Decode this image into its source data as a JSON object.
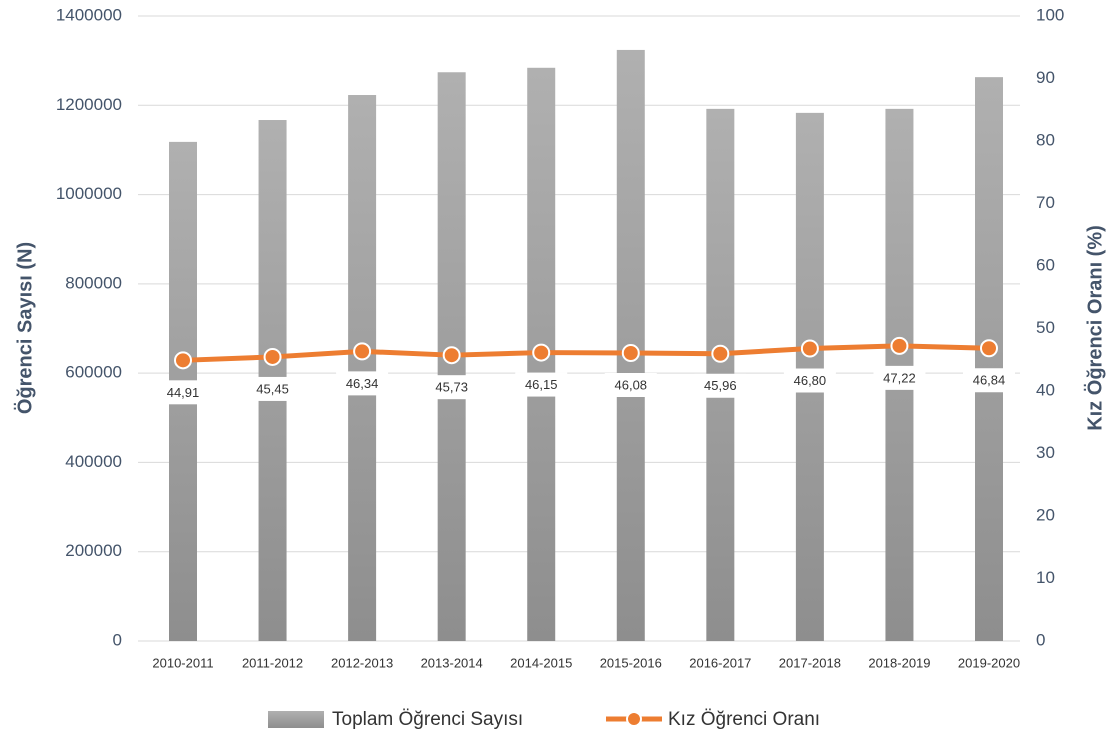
{
  "chart_data": {
    "type": "bar",
    "categories": [
      "2010-2011",
      "2011-2012",
      "2012-2013",
      "2013-2014",
      "2014-2015",
      "2015-2016",
      "2016-2017",
      "2017-2018",
      "2018-2019",
      "2019-2020"
    ],
    "series": [
      {
        "name": "Toplam Öğrenci Sayısı",
        "type": "bar",
        "color": "#a0a0a0",
        "values": [
          1118000,
          1167000,
          1223000,
          1274000,
          1284000,
          1324000,
          1192000,
          1183000,
          1192000,
          1263000
        ]
      },
      {
        "name": "Kız Öğrenci Oranı",
        "type": "line",
        "axis": "y2",
        "color": "#ed7d31",
        "values": [
          44.91,
          45.45,
          46.34,
          45.73,
          46.15,
          46.08,
          45.96,
          46.8,
          47.22,
          46.84
        ],
        "value_labels": [
          "44,91",
          "45,45",
          "46,34",
          "45,73",
          "46,15",
          "46,08",
          "45,96",
          "46,80",
          "47,22",
          "46,84"
        ]
      }
    ],
    "ylabel": "Öğrenci Sayısı (N)",
    "y2label": "Kız Öğrenci Oranı (%)",
    "ylim": [
      0,
      1400000
    ],
    "yticks": [
      0,
      200000,
      400000,
      600000,
      800000,
      1000000,
      1200000,
      1400000
    ],
    "y2lim": [
      0,
      100
    ],
    "y2ticks": [
      0,
      10,
      20,
      30,
      40,
      50,
      60,
      70,
      80,
      90,
      100
    ],
    "grid": true,
    "legend": "bottom"
  }
}
